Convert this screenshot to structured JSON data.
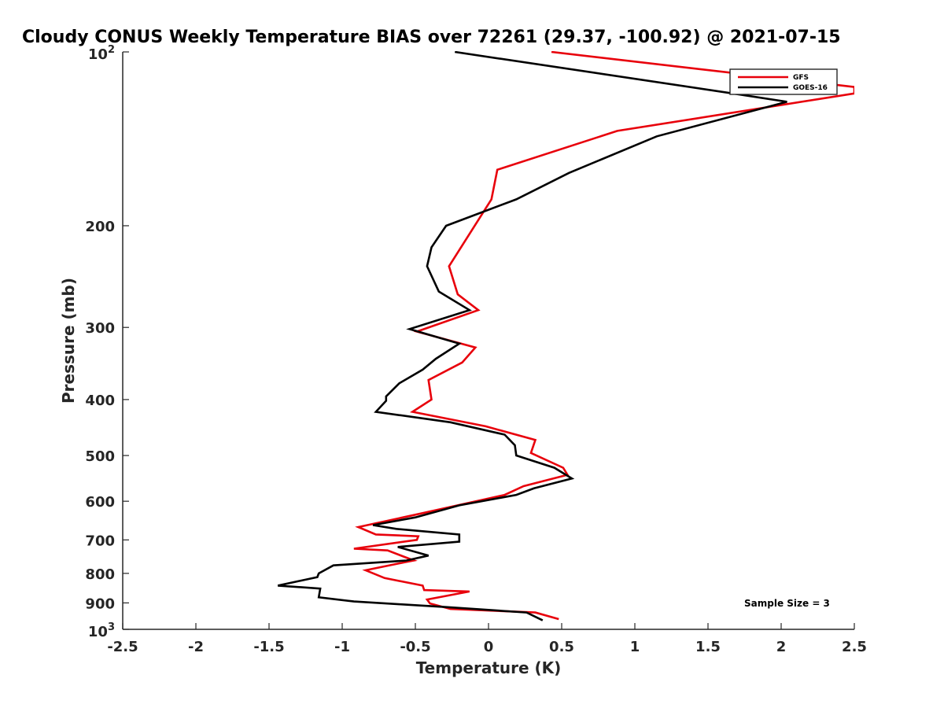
{
  "chart_data": {
    "type": "line",
    "title": "Cloudy CONUS Weekly Temperature BIAS over 72261 (29.37, -100.92) @ 2021-07-15",
    "xlabel": "Temperature (K)",
    "ylabel": "Pressure (mb)",
    "xlim": [
      -2.5,
      2.5
    ],
    "ylim": [
      100,
      1000
    ],
    "y_scale": "log",
    "y_reversed": true,
    "x_ticks": [
      "-2.5",
      "-2",
      "-1.5",
      "-1",
      "-0.5",
      "0",
      "0.5",
      "1",
      "1.5",
      "2",
      "2.5"
    ],
    "y_ticks": [
      {
        "value": 100,
        "base": "10",
        "exp": "2"
      },
      {
        "value": 200,
        "label": "200"
      },
      {
        "value": 300,
        "label": "300"
      },
      {
        "value": 400,
        "label": "400"
      },
      {
        "value": 500,
        "label": "500"
      },
      {
        "value": 600,
        "label": "600"
      },
      {
        "value": 700,
        "label": "700"
      },
      {
        "value": 800,
        "label": "800"
      },
      {
        "value": 900,
        "label": "900"
      },
      {
        "value": 1000,
        "base": "10",
        "exp": "3"
      }
    ],
    "grid": false,
    "legend_position": "top-right",
    "annotation": "Sample Size = 3",
    "series": [
      {
        "name": "GFS",
        "color": "#e8000b",
        "points": [
          [
            0.43,
            100
          ],
          [
            2.5,
            115
          ],
          [
            2.5,
            118
          ],
          [
            0.88,
            137
          ],
          [
            0.06,
            160
          ],
          [
            0.02,
            180
          ],
          [
            -0.27,
            235
          ],
          [
            -0.21,
            263
          ],
          [
            -0.07,
            280
          ],
          [
            -0.49,
            305
          ],
          [
            -0.09,
            325
          ],
          [
            -0.18,
            345
          ],
          [
            -0.41,
            370
          ],
          [
            -0.39,
            400
          ],
          [
            -0.52,
            420
          ],
          [
            -0.02,
            445
          ],
          [
            0.32,
            470
          ],
          [
            0.29,
            495
          ],
          [
            0.51,
            525
          ],
          [
            0.54,
            540
          ],
          [
            0.24,
            565
          ],
          [
            0.11,
            585
          ],
          [
            -0.46,
            630
          ],
          [
            -0.89,
            665
          ],
          [
            -0.77,
            685
          ],
          [
            -0.48,
            690
          ],
          [
            -0.49,
            700
          ],
          [
            -0.92,
            725
          ],
          [
            -0.69,
            730
          ],
          [
            -0.51,
            760
          ],
          [
            -0.57,
            765
          ],
          [
            -0.84,
            790
          ],
          [
            -0.71,
            815
          ],
          [
            -0.45,
            840
          ],
          [
            -0.44,
            855
          ],
          [
            -0.13,
            860
          ],
          [
            -0.42,
            888
          ],
          [
            -0.4,
            902
          ],
          [
            -0.26,
            922
          ],
          [
            0.32,
            935
          ],
          [
            0.48,
            960
          ]
        ]
      },
      {
        "name": "GOES-16",
        "color": "#000000",
        "points": [
          [
            -0.23,
            100
          ],
          [
            1.67,
            118
          ],
          [
            2.04,
            122
          ],
          [
            1.15,
            140
          ],
          [
            0.55,
            162
          ],
          [
            0.19,
            180
          ],
          [
            -0.29,
            200
          ],
          [
            -0.39,
            218
          ],
          [
            -0.42,
            235
          ],
          [
            -0.34,
            260
          ],
          [
            -0.13,
            280
          ],
          [
            -0.54,
            302
          ],
          [
            -0.2,
            320
          ],
          [
            -0.36,
            340
          ],
          [
            -0.45,
            355
          ],
          [
            -0.61,
            375
          ],
          [
            -0.7,
            395
          ],
          [
            -0.7,
            402
          ],
          [
            -0.77,
            420
          ],
          [
            -0.26,
            438
          ],
          [
            0.11,
            460
          ],
          [
            0.18,
            480
          ],
          [
            0.19,
            500
          ],
          [
            0.45,
            525
          ],
          [
            0.57,
            548
          ],
          [
            0.31,
            570
          ],
          [
            0.19,
            585
          ],
          [
            -0.2,
            610
          ],
          [
            -0.5,
            640
          ],
          [
            -0.79,
            660
          ],
          [
            -0.63,
            670
          ],
          [
            -0.2,
            685
          ],
          [
            -0.2,
            705
          ],
          [
            -0.62,
            720
          ],
          [
            -0.41,
            745
          ],
          [
            -0.56,
            760
          ],
          [
            -1.06,
            775
          ],
          [
            -1.16,
            800
          ],
          [
            -1.17,
            812
          ],
          [
            -1.44,
            840
          ],
          [
            -1.15,
            850
          ],
          [
            -1.16,
            880
          ],
          [
            -0.92,
            895
          ],
          [
            -0.6,
            905
          ],
          [
            -0.29,
            915
          ],
          [
            0.26,
            935
          ],
          [
            0.37,
            965
          ]
        ]
      }
    ]
  }
}
